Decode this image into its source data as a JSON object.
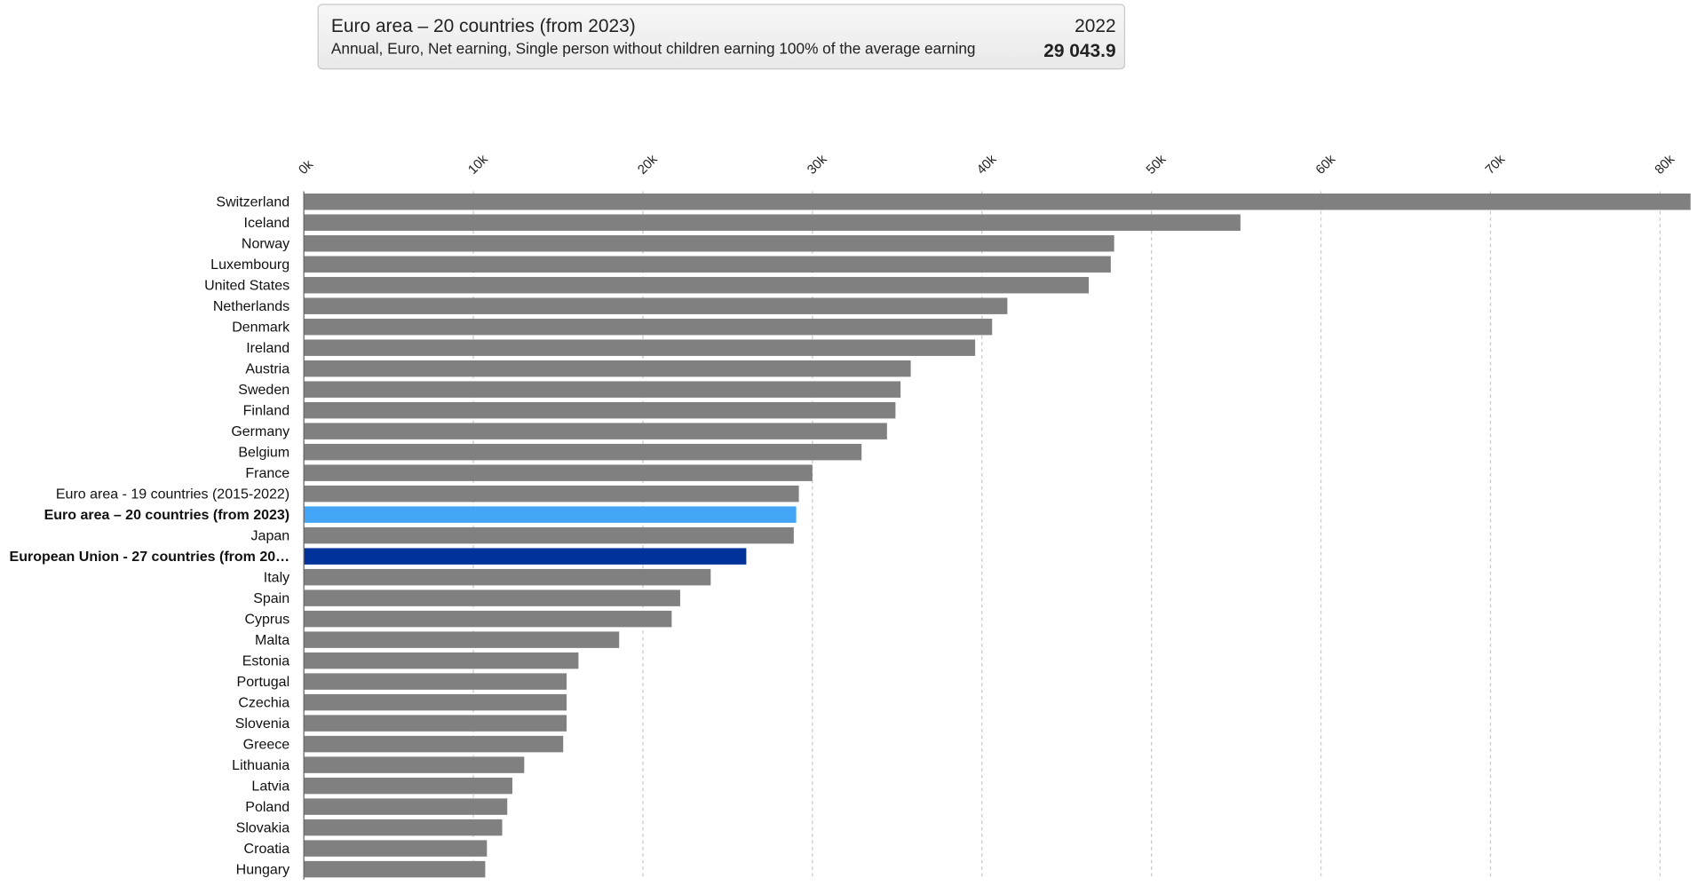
{
  "tooltip": {
    "title": "Euro area – 20 countries (from 2023)",
    "period": "2022",
    "description": "Annual, Euro, Net earning, Single person without children earning 100% of the average earning",
    "value": "29 043.9"
  },
  "chart_data": {
    "type": "hbar",
    "categories": [
      "Switzerland",
      "Iceland",
      "Norway",
      "Luxembourg",
      "United States",
      "Netherlands",
      "Denmark",
      "Ireland",
      "Austria",
      "Sweden",
      "Finland",
      "Germany",
      "Belgium",
      "France",
      "Euro area - 19 countries  (2015-2022)",
      "Euro area – 20 countries (from 2023)",
      "Japan",
      "European Union - 27 countries (from 20…",
      "Italy",
      "Spain",
      "Cyprus",
      "Malta",
      "Estonia",
      "Portugal",
      "Czechia",
      "Slovenia",
      "Greece",
      "Lithuania",
      "Latvia",
      "Poland",
      "Slovakia",
      "Croatia",
      "Hungary"
    ],
    "values": [
      81800,
      55250,
      47800,
      47600,
      46300,
      41500,
      40600,
      39600,
      35800,
      35200,
      34900,
      34400,
      32900,
      30000,
      29200,
      29043.9,
      28900,
      26100,
      24000,
      22200,
      21700,
      18600,
      16200,
      15500,
      15500,
      15500,
      15300,
      13000,
      12300,
      12000,
      11700,
      10800,
      10700
    ],
    "color": "#808080",
    "colors": [
      "#808080",
      "#808080",
      "#808080",
      "#808080",
      "#808080",
      "#808080",
      "#808080",
      "#808080",
      "#808080",
      "#808080",
      "#808080",
      "#808080",
      "#808080",
      "#808080",
      "#808080",
      "#42a5f5",
      "#808080",
      "#003399",
      "#808080",
      "#808080",
      "#808080",
      "#808080",
      "#808080",
      "#808080",
      "#808080",
      "#808080",
      "#808080",
      "#808080",
      "#808080",
      "#808080",
      "#808080",
      "#808080",
      "#808080"
    ],
    "xlim": [
      0,
      81750
    ],
    "xticks": [
      {
        "value": 0,
        "label": "0k"
      },
      {
        "value": 10000,
        "label": "10k"
      },
      {
        "value": 20000,
        "label": "20k"
      },
      {
        "value": 30000,
        "label": "30k"
      },
      {
        "value": 40000,
        "label": "40k"
      },
      {
        "value": 50000,
        "label": "50k"
      },
      {
        "value": 60000,
        "label": "60k"
      },
      {
        "value": 70000,
        "label": "70k"
      },
      {
        "value": 80000,
        "label": "80k"
      }
    ],
    "grid": true
  }
}
